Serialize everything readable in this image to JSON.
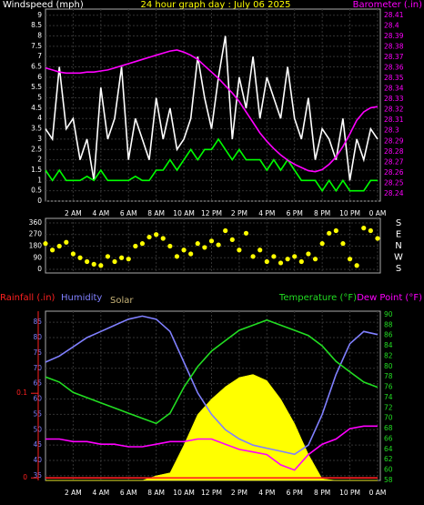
{
  "chart_data": [
    {
      "type": "line",
      "title": "24 hour graph day : July 06 2025",
      "ylabel": "Windspeed (mph)",
      "y2label": "Barometer (.in)",
      "xlim": [
        0,
        24.2
      ],
      "ylim": [
        0,
        9.3
      ],
      "y2lim": [
        28.233,
        28.416
      ],
      "grid": true,
      "xticks": [
        {
          "value": 2,
          "label": "2 AM"
        },
        {
          "value": 4,
          "label": "4 AM"
        },
        {
          "value": 6,
          "label": "6 AM"
        },
        {
          "value": 8,
          "label": "8 AM"
        },
        {
          "value": 10,
          "label": "10 AM"
        },
        {
          "value": 12,
          "label": "12 PM"
        },
        {
          "value": 14,
          "label": "2 PM"
        },
        {
          "value": 16,
          "label": "4 PM"
        },
        {
          "value": 18,
          "label": "6 PM"
        },
        {
          "value": 20,
          "label": "8 PM"
        },
        {
          "value": 22,
          "label": "10 PM"
        },
        {
          "value": 24,
          "label": "0 AM"
        }
      ],
      "yticks": [
        0,
        0.5,
        1,
        1.5,
        2,
        2.5,
        3,
        3.5,
        4,
        4.5,
        5,
        5.5,
        6,
        6.5,
        7,
        7.5,
        8,
        8.5,
        9
      ],
      "y2ticks": [
        28.24,
        28.25,
        28.26,
        28.27,
        28.28,
        28.29,
        28.3,
        28.31,
        28.32,
        28.33,
        28.34,
        28.35,
        28.36,
        28.37,
        28.38,
        28.39,
        28.4,
        28.41
      ],
      "x": [
        0,
        0.5,
        1,
        1.5,
        2,
        2.5,
        3,
        3.5,
        4,
        4.5,
        5,
        5.5,
        6,
        6.5,
        7,
        7.5,
        8,
        8.5,
        9,
        9.5,
        10,
        10.5,
        11,
        11.5,
        12,
        12.5,
        13,
        13.5,
        14,
        14.5,
        15,
        15.5,
        16,
        16.5,
        17,
        17.5,
        18,
        18.5,
        19,
        19.5,
        20,
        20.5,
        21,
        21.5,
        22,
        22.5,
        23,
        23.5,
        24
      ],
      "series": [
        {
          "color": "#ffffff",
          "values": [
            3.5,
            3,
            6.5,
            3.5,
            4,
            2,
            3,
            1,
            5.5,
            3,
            4,
            6.5,
            2,
            4,
            3,
            2,
            5,
            3,
            4.5,
            2.5,
            3,
            4,
            7,
            5,
            3.5,
            6,
            8,
            3,
            6,
            4.5,
            7,
            4,
            6,
            5,
            4,
            6.5,
            4,
            3,
            5,
            2,
            3.5,
            3,
            2,
            4,
            1,
            3,
            2,
            3.5,
            3
          ]
        },
        {
          "color": "#00ff00",
          "values": [
            1.5,
            1,
            1.5,
            1,
            1,
            1,
            1.2,
            1,
            1.5,
            1,
            1,
            1,
            1,
            1.2,
            1,
            1,
            1.5,
            1.5,
            2,
            1.5,
            2,
            2.5,
            2,
            2.5,
            2.5,
            3,
            2.5,
            2,
            2.5,
            2,
            2,
            2,
            1.5,
            2,
            1.5,
            2,
            1.5,
            1,
            1,
            1,
            0.5,
            1,
            0.5,
            1,
            0.5,
            0.5,
            0.5,
            1,
            1
          ]
        },
        {
          "color": "#ff00ff",
          "axis": "y2",
          "values": [
            28.36,
            28.358,
            28.356,
            28.355,
            28.355,
            28.355,
            28.356,
            28.356,
            28.357,
            28.358,
            28.36,
            28.362,
            28.364,
            28.366,
            28.368,
            28.37,
            28.372,
            28.374,
            28.376,
            28.377,
            28.375,
            28.372,
            28.368,
            28.362,
            28.356,
            28.35,
            28.343,
            28.336,
            28.328,
            28.318,
            28.308,
            28.298,
            28.29,
            28.283,
            28.277,
            28.272,
            28.268,
            28.265,
            28.262,
            28.261,
            28.263,
            28.268,
            28.275,
            28.285,
            28.297,
            28.31,
            28.318,
            28.322,
            28.323
          ]
        }
      ]
    },
    {
      "type": "scatter",
      "xlim": [
        0,
        24.2
      ],
      "ylim": [
        -28,
        395
      ],
      "grid": true,
      "yticks": [
        0,
        90,
        180,
        270,
        360
      ],
      "compass": [
        "S",
        "E",
        "N",
        "W",
        "S"
      ],
      "x": [
        0,
        0.5,
        1,
        1.5,
        2,
        2.5,
        3,
        3.5,
        4,
        4.5,
        5,
        5.5,
        6,
        6.5,
        7,
        7.5,
        8,
        8.5,
        9,
        9.5,
        10,
        10.5,
        11,
        11.5,
        12,
        12.5,
        13,
        13.5,
        14,
        14.5,
        15,
        15.5,
        16,
        16.5,
        17,
        17.5,
        18,
        18.5,
        19,
        19.5,
        20,
        20.5,
        21,
        21.5,
        22,
        22.5,
        23,
        23.5,
        24
      ],
      "series": [
        {
          "color": "#ffff00",
          "values": [
            200,
            150,
            180,
            210,
            120,
            90,
            60,
            40,
            30,
            100,
            60,
            90,
            80,
            180,
            200,
            250,
            270,
            240,
            180,
            100,
            150,
            120,
            200,
            170,
            220,
            190,
            300,
            230,
            150,
            280,
            100,
            150,
            60,
            100,
            50,
            80,
            100,
            60,
            120,
            80,
            200,
            280,
            300,
            200,
            80,
            30,
            320,
            300,
            240
          ]
        }
      ]
    },
    {
      "type": "line",
      "y3label": "Rainfall (.in)",
      "ylabel": "Humidity",
      "solarlabel": "Solar",
      "y2label": "Temperature (°F)",
      "dewlabel": "Dew Point (°F)",
      "xlim": [
        0,
        24.2
      ],
      "ylim": [
        33.5,
        88.6
      ],
      "y2lim": [
        58,
        90.7
      ],
      "y3lim": [
        -0.003,
        0.197
      ],
      "grid": true,
      "xticks": [
        {
          "value": 2,
          "label": "2 AM"
        },
        {
          "value": 4,
          "label": "4 AM"
        },
        {
          "value": 6,
          "label": "6 AM"
        },
        {
          "value": 8,
          "label": "8 AM"
        },
        {
          "value": 10,
          "label": "10 AM"
        },
        {
          "value": 12,
          "label": "12 PM"
        },
        {
          "value": 14,
          "label": "2 PM"
        },
        {
          "value": 16,
          "label": "4 PM"
        },
        {
          "value": 18,
          "label": "6 PM"
        },
        {
          "value": 20,
          "label": "8 PM"
        },
        {
          "value": 22,
          "label": "10 PM"
        },
        {
          "value": 24,
          "label": "0 AM"
        }
      ],
      "yticks": [
        35,
        40,
        45,
        50,
        55,
        60,
        65,
        70,
        75,
        80,
        85
      ],
      "y2ticks": [
        58,
        60,
        62,
        64,
        66,
        68,
        70,
        72,
        74,
        76,
        78,
        80,
        82,
        84,
        86,
        88,
        90
      ],
      "y3ticks": [
        0,
        0.1
      ],
      "x": [
        0,
        1,
        2,
        3,
        4,
        5,
        6,
        7,
        8,
        9,
        10,
        11,
        12,
        13,
        14,
        15,
        16,
        17,
        18,
        19,
        20,
        21,
        22,
        23,
        24
      ],
      "series": [
        {
          "color": "#ffff00",
          "kind": "area",
          "values": [
            33.5,
            33.5,
            33.5,
            33.5,
            33.5,
            33.5,
            33.5,
            33.5,
            35,
            36,
            45,
            55,
            60,
            64,
            67,
            68,
            66,
            60,
            52,
            42,
            34,
            33.5,
            33.5,
            33.5,
            33.5
          ]
        },
        {
          "color": "#8080ff",
          "values": [
            72,
            74,
            77,
            80,
            82,
            84,
            86,
            87,
            86,
            82,
            72,
            62,
            55,
            50,
            47,
            45,
            44,
            43,
            42,
            45,
            55,
            68,
            78,
            82,
            81
          ]
        },
        {
          "color": "#22dd22",
          "axis": "y2",
          "values": [
            78,
            77,
            75,
            74,
            73,
            72,
            71,
            70,
            69,
            71,
            76,
            80,
            83,
            85,
            87,
            88,
            89,
            88,
            87,
            86,
            84,
            81,
            79,
            77,
            76
          ]
        },
        {
          "color": "#ff00ff",
          "axis": "y2",
          "values": [
            66,
            66,
            65.5,
            65.5,
            65,
            65,
            64.5,
            64.5,
            65,
            65.5,
            65.5,
            66,
            66,
            65,
            64,
            63.5,
            63,
            61,
            60,
            63,
            65,
            66,
            68,
            68.5,
            68.5
          ]
        },
        {
          "color": "#ff2020",
          "axis": "y3",
          "values": [
            0,
            0,
            0,
            0,
            0,
            0,
            0,
            0,
            0,
            0,
            0,
            0,
            0,
            0,
            0,
            0,
            0,
            0,
            0,
            0,
            0,
            0,
            0,
            0,
            0
          ]
        }
      ]
    }
  ]
}
